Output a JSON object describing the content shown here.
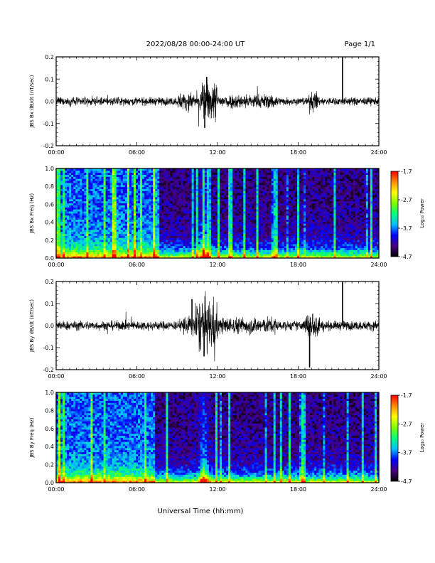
{
  "header": {
    "title": "2022/08/28  00:00-24:00 UT",
    "page": "Page 1/1"
  },
  "xaxis": {
    "label": "Universal Time (hh:mm)",
    "range_hours": [
      0,
      24
    ],
    "tick_labels": [
      "00:00",
      "06:00",
      "12:00",
      "18:00",
      "24:00"
    ]
  },
  "colorbar": {
    "label": "Log₁₀ Power",
    "range": [
      -4.7,
      -1.7
    ],
    "tick_labels": [
      "-1.7",
      "-2.7",
      "-3.7",
      "-4.7"
    ],
    "palette": [
      "#000000",
      "#4b0082",
      "#0000ff",
      "#00bfff",
      "#00ff7f",
      "#7fff00",
      "#ffff00",
      "#ff8c00",
      "#ff0000"
    ]
  },
  "chart_data": [
    {
      "type": "line",
      "id": "bx-timeseries",
      "ylabel": "JBS Bx dB/dt (nT/sec)",
      "ylim": [
        -0.2,
        0.2
      ],
      "y_tick_labels": [
        "0.2",
        "0.1",
        "0.0",
        "-0.1",
        "-0.2"
      ],
      "baseline_noise": 0.012,
      "activity_hours": [
        [
          9.0,
          10.5,
          0.025
        ],
        [
          10.6,
          12.0,
          0.06
        ],
        [
          12.0,
          16.5,
          0.022
        ],
        [
          18.8,
          19.5,
          0.03
        ]
      ],
      "spikes": [
        {
          "t": 21.3,
          "y": 0.2
        },
        {
          "t": 11.05,
          "y": -0.12
        },
        {
          "t": 11.2,
          "y": 0.11
        }
      ]
    },
    {
      "type": "heatmap",
      "id": "bx-spectrogram",
      "ylabel": "JBS Bx Freq (Hz)",
      "ylim": [
        0.0,
        1.0
      ],
      "y_tick_labels": [
        "1.0",
        "0.8",
        "0.6",
        "0.4",
        "0.2",
        "0.0"
      ],
      "quiet_hours": [
        7.3,
        24.0
      ],
      "event_hour": 11.0
    },
    {
      "type": "line",
      "id": "by-timeseries",
      "ylabel": "JBS By dB/dt (nT/sec)",
      "ylim": [
        -0.2,
        0.2
      ],
      "y_tick_labels": [
        "0.2",
        "0.1",
        "0.0",
        "-0.1",
        "-0.2"
      ],
      "baseline_noise": 0.014,
      "activity_hours": [
        [
          9.3,
          10.3,
          0.03
        ],
        [
          10.3,
          12.0,
          0.08
        ],
        [
          12.0,
          16.5,
          0.025
        ],
        [
          18.5,
          19.6,
          0.04
        ]
      ],
      "spikes": [
        {
          "t": 21.3,
          "y": 0.2
        },
        {
          "t": 18.85,
          "y": -0.19
        },
        {
          "t": 11.0,
          "y": -0.14
        },
        {
          "t": 10.1,
          "y": 0.12
        }
      ]
    },
    {
      "type": "heatmap",
      "id": "by-spectrogram",
      "ylabel": "JBS By Freq (Hz)",
      "ylim": [
        0.0,
        1.0
      ],
      "y_tick_labels": [
        "1.0",
        "0.8",
        "0.6",
        "0.4",
        "0.2",
        "0.0"
      ],
      "quiet_hours": [
        7.3,
        24.0
      ],
      "event_hour": 11.0
    }
  ]
}
